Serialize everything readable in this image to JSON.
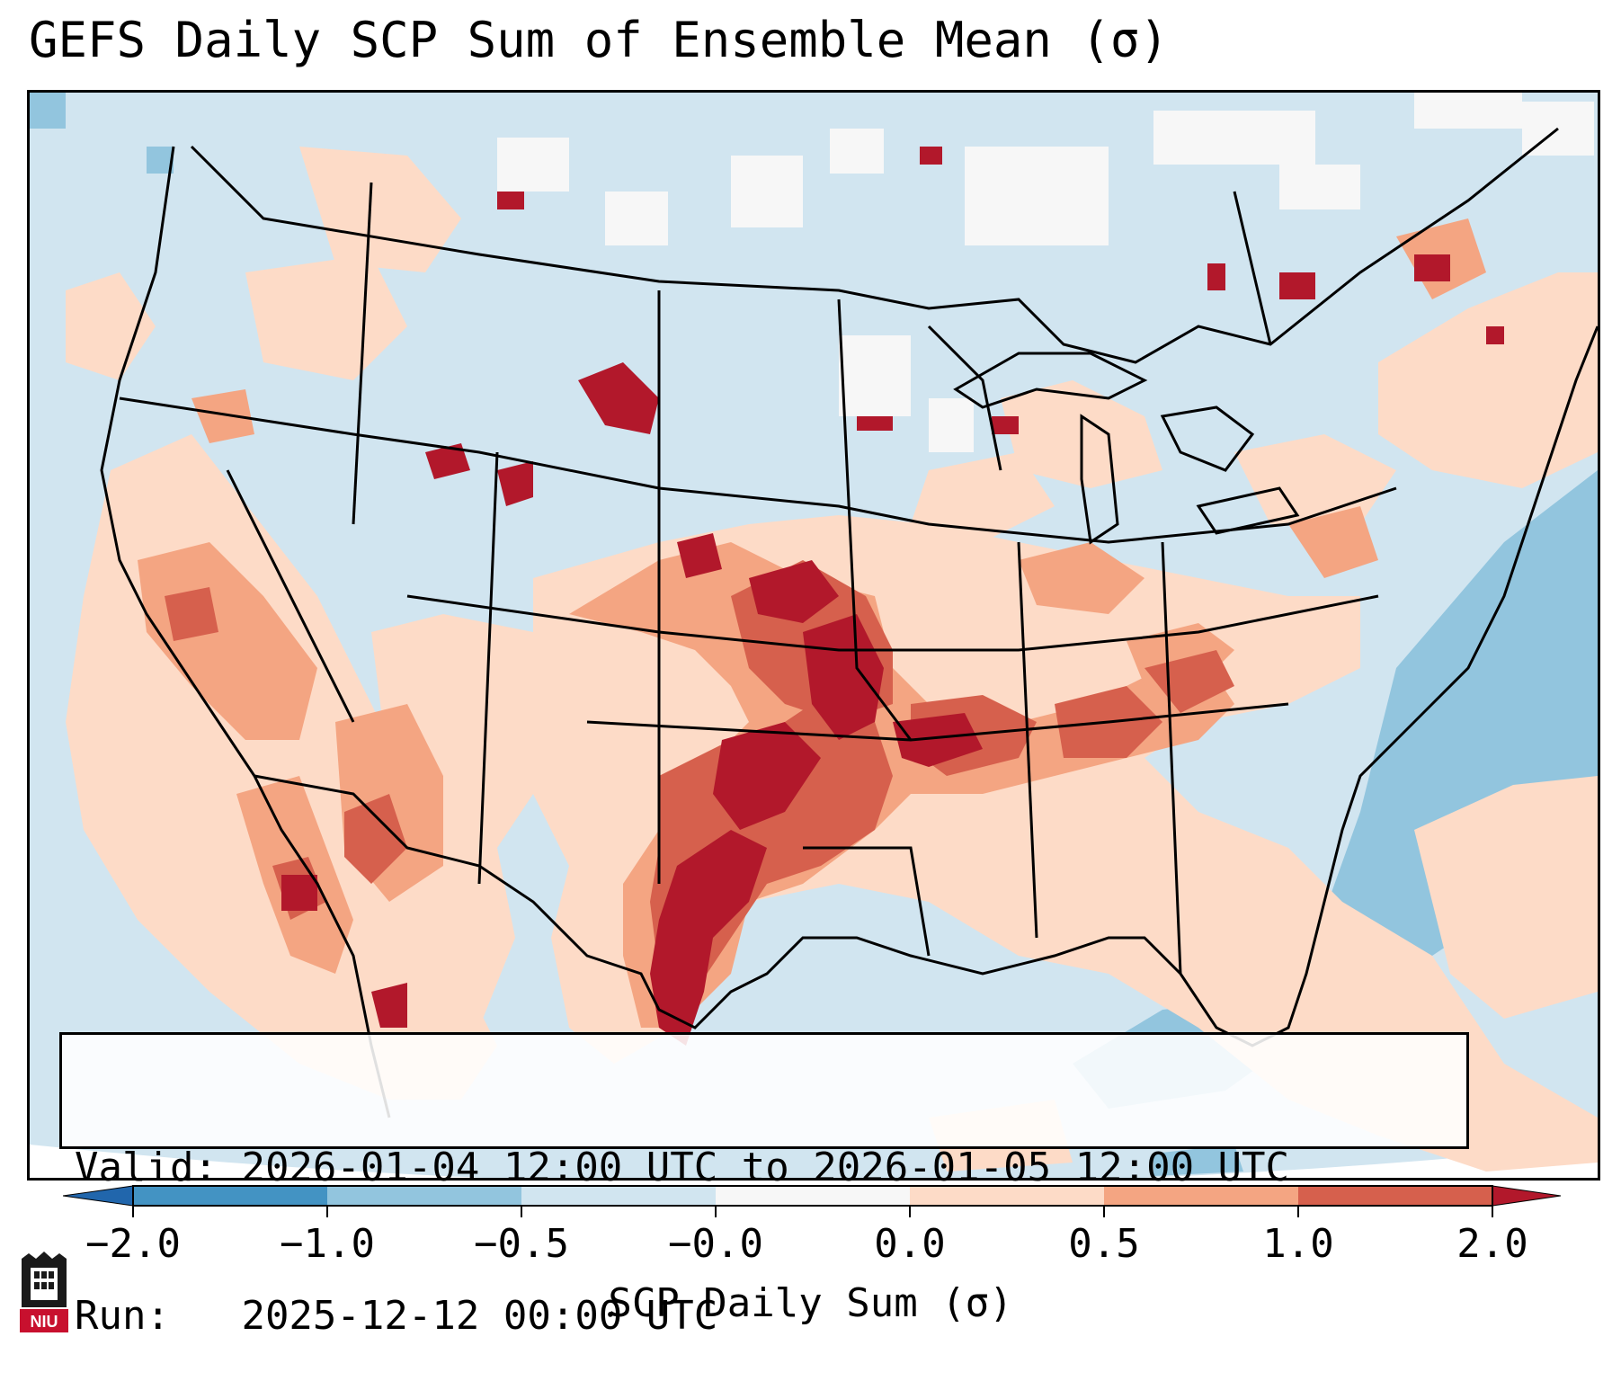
{
  "title": "GEFS Daily SCP Sum of Ensemble Mean (σ)",
  "info": {
    "valid_label": "Valid:",
    "valid_value": "2026-01-04 12:00 UTC to 2026-01-05 12:00 UTC",
    "run_label": "Run:",
    "run_value": "2025-12-12 00:00 UTC"
  },
  "colorbar": {
    "label": "SCP Daily Sum (σ)",
    "ticks": [
      "−2.0",
      "−1.0",
      "−0.5",
      "−0.0",
      "0.0",
      "0.5",
      "1.0",
      "2.0"
    ],
    "bins": [
      {
        "range": "< -2.0",
        "color": "#2166ac"
      },
      {
        "range": "-2.0 to -1.0",
        "color": "#4393c3"
      },
      {
        "range": "-1.0 to -0.5",
        "color": "#92c5de"
      },
      {
        "range": "-0.5 to -0.0",
        "color": "#d1e5f0"
      },
      {
        "range": "-0.0 to 0.0",
        "color": "#f7f7f7"
      },
      {
        "range": "0.0 to 0.5",
        "color": "#fddbc7"
      },
      {
        "range": "0.5 to 1.0",
        "color": "#f4a582"
      },
      {
        "range": "1.0 to 2.0",
        "color": "#d6604d"
      },
      {
        "range": "> 2.0",
        "color": "#b2182b"
      }
    ]
  },
  "logo": {
    "text": "NIU"
  },
  "map": {
    "region": "Contiguous United States, southern Canada, northern Mexico",
    "background_color": "#d1e5f0"
  }
}
